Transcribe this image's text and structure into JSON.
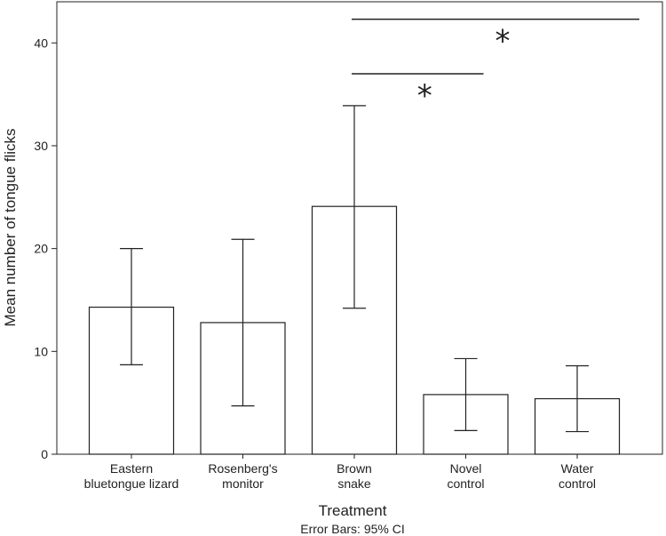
{
  "chart_data": {
    "type": "bar",
    "categories": [
      [
        "Eastern",
        "bluetongue lizard"
      ],
      [
        "Rosenberg's",
        "monitor"
      ],
      [
        "Brown",
        "snake"
      ],
      [
        "Novel",
        "control"
      ],
      [
        "Water",
        "control"
      ]
    ],
    "values": [
      14.3,
      12.8,
      24.1,
      5.8,
      5.4
    ],
    "error_low": [
      8.7,
      4.7,
      14.2,
      2.3,
      2.2
    ],
    "error_high": [
      20.0,
      20.9,
      33.9,
      9.3,
      8.6
    ],
    "xlabel": "Treatment",
    "ylabel": "Mean number of tongue flicks",
    "note": "Error Bars: 95% CI",
    "ylim": [
      0,
      44
    ],
    "yticks": [
      0,
      10,
      20,
      30,
      40
    ],
    "significance": [
      {
        "from": 2,
        "to": 3,
        "y": 37,
        "label": "*"
      },
      {
        "from": 2,
        "to": 4,
        "y": 42.3,
        "label": "*"
      }
    ]
  }
}
